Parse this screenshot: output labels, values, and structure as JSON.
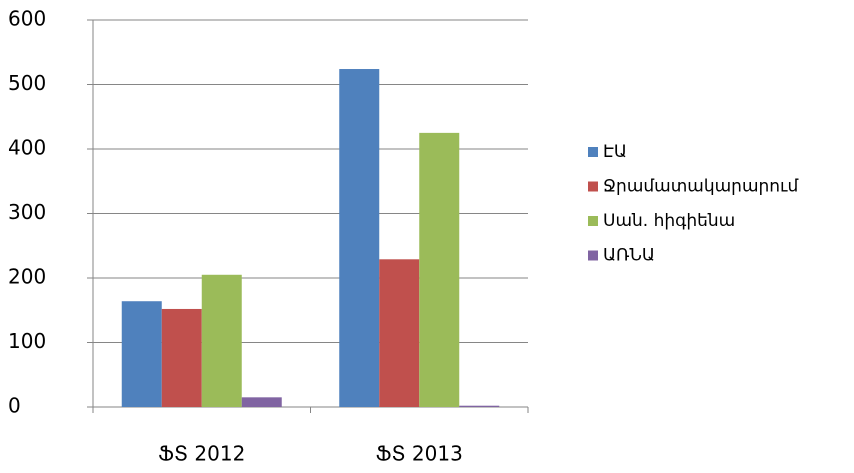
{
  "chart_data": {
    "type": "bar",
    "categories": [
      "ՖՏ 2012",
      "ՖՏ 2013"
    ],
    "series": [
      {
        "name": "ԷԱ",
        "color": "#4f81bd",
        "values": [
          164,
          524
        ]
      },
      {
        "name": "Ջրամատակարարում",
        "color": "#c0504d",
        "values": [
          152,
          229
        ]
      },
      {
        "name": "Սան. հիգիենա",
        "color": "#9bbb59",
        "values": [
          205,
          425
        ]
      },
      {
        "name": "ԱՌՆԱ",
        "color": "#8064a2",
        "values": [
          15,
          2
        ]
      }
    ],
    "ylim": [
      0,
      600
    ],
    "yticks": [
      0,
      100,
      200,
      300,
      400,
      500,
      600
    ],
    "grid": true,
    "legend": "right"
  }
}
